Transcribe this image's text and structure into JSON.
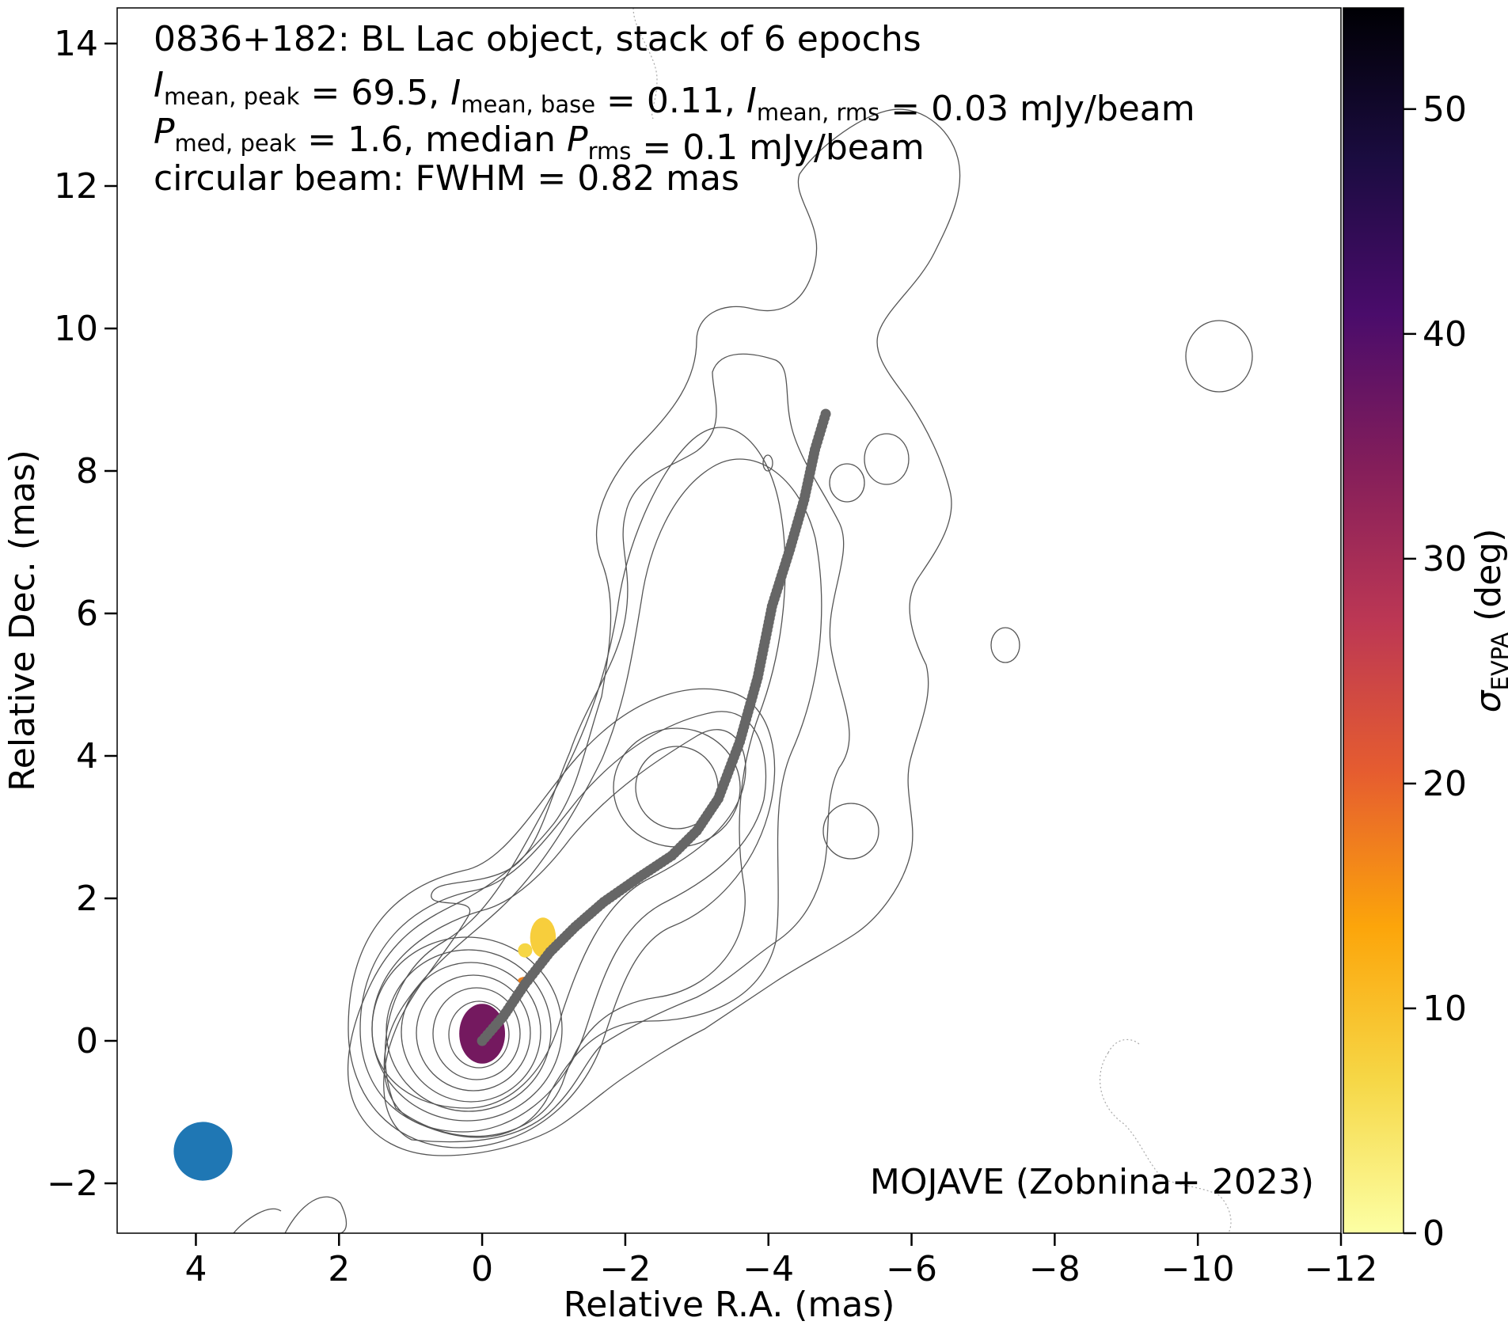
{
  "chart_data": {
    "type": "scatter",
    "title": "0836+182: BL Lac object, stack of 6 epochs",
    "annotation_lines": [
      {
        "parts": [
          {
            "t": "I",
            "style": "italic"
          },
          {
            "t": "mean, peak",
            "style": "sub"
          },
          {
            "t": " = 69.5, ",
            "style": "normal"
          },
          {
            "t": "I",
            "style": "italic"
          },
          {
            "t": "mean, base",
            "style": "sub"
          },
          {
            "t": " = 0.11, ",
            "style": "normal"
          },
          {
            "t": "I",
            "style": "italic"
          },
          {
            "t": "mean, rms",
            "style": "sub"
          },
          {
            "t": " = 0.03 mJy/beam",
            "style": "normal"
          }
        ]
      },
      {
        "parts": [
          {
            "t": "P",
            "style": "italic"
          },
          {
            "t": "med, peak",
            "style": "sub"
          },
          {
            "t": " = 1.6, median ",
            "style": "normal"
          },
          {
            "t": "P",
            "style": "italic"
          },
          {
            "t": "rms",
            "style": "sub"
          },
          {
            "t": " = 0.1 mJy/beam",
            "style": "normal"
          }
        ]
      },
      {
        "parts": [
          {
            "t": "circular beam: FWHM = 0.82 mas",
            "style": "normal"
          }
        ]
      }
    ],
    "credit": "MOJAVE (Zobnina+ 2023)",
    "xlabel": "Relative R.A. (mas)",
    "ylabel": "Relative Dec. (mas)",
    "xlim": [
      5.1,
      -12
    ],
    "ylim": [
      -2.7,
      14.5
    ],
    "xticks": [
      4,
      2,
      0,
      -2,
      -4,
      -6,
      -8,
      -10,
      -12
    ],
    "xtick_labels": [
      "4",
      "2",
      "0",
      "−2",
      "−4",
      "−6",
      "−8",
      "−10",
      "−12"
    ],
    "yticks": [
      -2,
      0,
      2,
      4,
      6,
      8,
      10,
      12,
      14
    ],
    "ytick_labels": [
      "−2",
      "0",
      "2",
      "4",
      "6",
      "8",
      "10",
      "12",
      "14"
    ],
    "colorbar": {
      "label_symbol": "σ",
      "label_sub": "EVPA",
      "label_unit": " (deg)",
      "min": 0,
      "max": 54.5,
      "ticks": [
        0,
        10,
        20,
        30,
        40,
        50
      ],
      "tick_labels": [
        "0",
        "10",
        "20",
        "30",
        "40",
        "50"
      ],
      "colormap": "inferno_r",
      "stops": [
        "#fcffa4",
        "#f6d746",
        "#fca50a",
        "#e65d2f",
        "#bc3754",
        "#841e5a",
        "#4a0c6b",
        "#1b0c41",
        "#000004"
      ]
    },
    "ridgeline": {
      "color": "#666666",
      "points": [
        [
          0.0,
          0.0
        ],
        [
          -0.3,
          0.35
        ],
        [
          -0.6,
          0.8
        ],
        [
          -0.95,
          1.25
        ],
        [
          -1.3,
          1.6
        ],
        [
          -1.7,
          1.95
        ],
        [
          -2.2,
          2.3
        ],
        [
          -2.65,
          2.6
        ],
        [
          -3.0,
          2.95
        ],
        [
          -3.3,
          3.4
        ],
        [
          -3.6,
          4.2
        ],
        [
          -3.85,
          5.1
        ],
        [
          -4.05,
          6.1
        ],
        [
          -4.3,
          6.9
        ],
        [
          -4.5,
          7.6
        ],
        [
          -4.65,
          8.3
        ],
        [
          -4.8,
          8.8
        ]
      ]
    },
    "evpa_sigma_patches": [
      {
        "x": 0.0,
        "y": 0.1,
        "rx": 0.32,
        "ry": 0.42,
        "value": 36
      },
      {
        "x": -0.85,
        "y": 1.45,
        "rx": 0.18,
        "ry": 0.28,
        "value": 8
      },
      {
        "x": -0.6,
        "y": 1.27,
        "rx": 0.1,
        "ry": 0.1,
        "value": 7
      },
      {
        "x": -0.6,
        "y": 0.85,
        "rx": 0.1,
        "ry": 0.05,
        "value": 17
      }
    ],
    "beam": {
      "x": 3.9,
      "y": -1.55,
      "fwhm": 0.82,
      "color": "#1f77b4"
    }
  }
}
